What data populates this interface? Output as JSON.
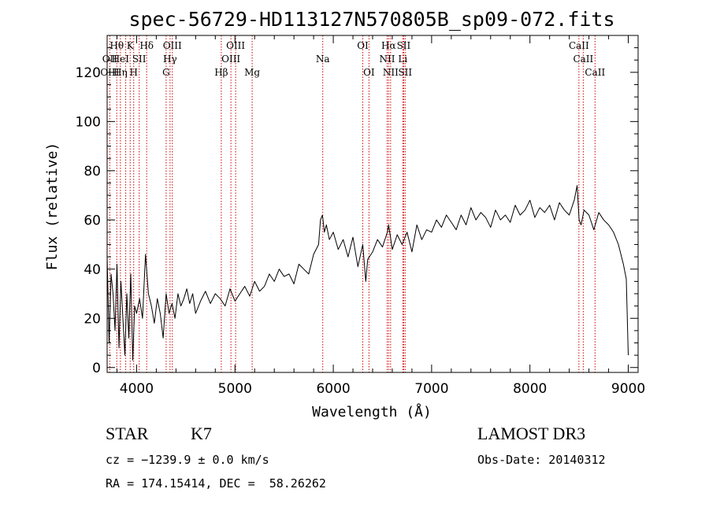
{
  "chart_data": {
    "type": "line",
    "title": "spec-56729-HD113127N570805B_sp09-072.fits",
    "xlabel": "Wavelength (Å)",
    "ylabel": "Flux (relative)",
    "xlim": [
      3700,
      9100
    ],
    "ylim": [
      -2,
      135
    ],
    "xticks": [
      4000,
      5000,
      6000,
      7000,
      8000,
      9000
    ],
    "yticks": [
      0,
      20,
      40,
      60,
      80,
      100,
      120
    ],
    "series": [
      {
        "x": [
          3700,
          3720,
          3740,
          3760,
          3780,
          3800,
          3820,
          3840,
          3860,
          3880,
          3900,
          3920,
          3940,
          3960,
          3980,
          4000,
          4030,
          4060,
          4090,
          4120,
          4150,
          4180,
          4210,
          4240,
          4270,
          4300,
          4330,
          4360,
          4390,
          4420,
          4450,
          4480,
          4510,
          4540,
          4570,
          4600,
          4650,
          4700,
          4750,
          4800,
          4850,
          4900,
          4950,
          5000,
          5050,
          5100,
          5150,
          5200,
          5250,
          5300,
          5350,
          5400,
          5450,
          5500,
          5550,
          5600,
          5650,
          5700,
          5750,
          5800,
          5850,
          5870,
          5890,
          5910,
          5930,
          5960,
          6000,
          6050,
          6100,
          6150,
          6200,
          6250,
          6300,
          6330,
          6350,
          6400,
          6450,
          6500,
          6550,
          6563,
          6600,
          6650,
          6700,
          6750,
          6800,
          6850,
          6900,
          6950,
          7000,
          7050,
          7100,
          7150,
          7200,
          7250,
          7300,
          7350,
          7400,
          7450,
          7500,
          7550,
          7600,
          7650,
          7700,
          7750,
          7800,
          7850,
          7900,
          7950,
          8000,
          8050,
          8100,
          8150,
          8200,
          8250,
          8300,
          8350,
          8400,
          8450,
          8480,
          8500,
          8520,
          8550,
          8600,
          8650,
          8700,
          8750,
          8800,
          8850,
          8900,
          8950,
          8980,
          9000
        ],
        "y": [
          45,
          10,
          38,
          30,
          15,
          42,
          8,
          35,
          20,
          5,
          30,
          12,
          38,
          3,
          25,
          22,
          28,
          20,
          46,
          30,
          25,
          18,
          28,
          22,
          12,
          30,
          22,
          26,
          20,
          30,
          25,
          28,
          32,
          26,
          30,
          22,
          27,
          31,
          26,
          30,
          28,
          25,
          32,
          27,
          30,
          33,
          29,
          35,
          31,
          33,
          38,
          35,
          40,
          37,
          38,
          34,
          42,
          40,
          38,
          46,
          50,
          60,
          62,
          55,
          58,
          52,
          55,
          48,
          52,
          45,
          53,
          41,
          50,
          35,
          44,
          47,
          52,
          49,
          55,
          58,
          48,
          54,
          50,
          55,
          47,
          58,
          52,
          56,
          55,
          60,
          57,
          62,
          59,
          56,
          62,
          58,
          65,
          60,
          63,
          61,
          57,
          64,
          60,
          62,
          59,
          66,
          62,
          64,
          68,
          61,
          65,
          63,
          66,
          60,
          67,
          64,
          62,
          68,
          74,
          60,
          58,
          64,
          62,
          56,
          63,
          60,
          58,
          55,
          50,
          42,
          36,
          5
        ]
      }
    ],
    "line_markers": {
      "wavelengths": [
        3727,
        3798,
        3835,
        3889,
        3934,
        3970,
        4026,
        4102,
        4300,
        4340,
        4363,
        4861,
        4959,
        5007,
        5175,
        5893,
        6300,
        6363,
        6548,
        6563,
        6583,
        6707,
        6716,
        6731,
        8498,
        8542,
        8662
      ],
      "labels": [
        {
          "text": "Hθ",
          "wl": 3798,
          "row": 0
        },
        {
          "text": "K",
          "wl": 3934,
          "row": 0
        },
        {
          "text": "Hδ",
          "wl": 4102,
          "row": 0
        },
        {
          "text": "OIII",
          "wl": 4363,
          "row": 0
        },
        {
          "text": "OIII",
          "wl": 5007,
          "row": 0
        },
        {
          "text": "OI",
          "wl": 6300,
          "row": 0
        },
        {
          "text": "Hα",
          "wl": 6563,
          "row": 0
        },
        {
          "text": "SII",
          "wl": 6716,
          "row": 0
        },
        {
          "text": "CaII",
          "wl": 8498,
          "row": 0
        },
        {
          "text": "OII",
          "wl": 3727,
          "row": 1
        },
        {
          "text": "HeI",
          "wl": 3835,
          "row": 1
        },
        {
          "text": "SII",
          "wl": 4026,
          "row": 1
        },
        {
          "text": "Hγ",
          "wl": 4340,
          "row": 1
        },
        {
          "text": "OIII",
          "wl": 4959,
          "row": 1
        },
        {
          "text": "Na",
          "wl": 5893,
          "row": 1
        },
        {
          "text": "NII",
          "wl": 6548,
          "row": 1
        },
        {
          "text": "Li",
          "wl": 6707,
          "row": 1
        },
        {
          "text": "CaII",
          "wl": 8542,
          "row": 1
        },
        {
          "text": "OIII",
          "wl": 3727,
          "row": 2
        },
        {
          "text": "Hη",
          "wl": 3835,
          "row": 2
        },
        {
          "text": "H",
          "wl": 3970,
          "row": 2
        },
        {
          "text": "G",
          "wl": 4300,
          "row": 2
        },
        {
          "text": "Hβ",
          "wl": 4861,
          "row": 2
        },
        {
          "text": "Mg",
          "wl": 5175,
          "row": 2
        },
        {
          "text": "OI",
          "wl": 6363,
          "row": 2
        },
        {
          "text": "NII",
          "wl": 6583,
          "row": 2
        },
        {
          "text": "SII",
          "wl": 6731,
          "row": 2
        },
        {
          "text": "CaII",
          "wl": 8662,
          "row": 2
        }
      ]
    },
    "line_color": "#000000",
    "marker_color": "#cc0000"
  },
  "info": {
    "class": "STAR",
    "subclass": "K7",
    "survey": "LAMOST DR3",
    "cz": "cz = −1239.9 ± 0.0 km/s",
    "obs_date": "Obs-Date: 20140312",
    "coords": "RA = 174.15414, DEC =  58.26262"
  }
}
